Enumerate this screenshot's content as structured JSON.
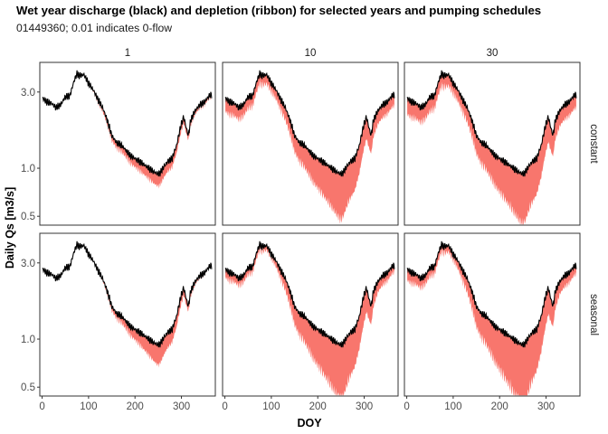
{
  "header": {
    "title": "Wet year discharge (black) and depletion (ribbon) for selected years and pumping schedules",
    "subtitle": "01449360; 0.01 indicates 0-flow"
  },
  "chart_data": {
    "type": "line",
    "title": "Wet year discharge (black) and depletion (ribbon) for selected years and pumping schedules",
    "subtitle": "01449360; 0.01 indicates 0-flow",
    "xlabel": "DOY",
    "ylabel": "Daily Qs [m3/s]",
    "y_scale": "log",
    "xlim": [
      -5,
      373
    ],
    "ylim": [
      0.44,
      4.6
    ],
    "x_ticks": [
      0,
      100,
      200,
      300
    ],
    "x_tick_labels": [
      "0",
      "100",
      "200",
      "300"
    ],
    "y_ticks": [
      0.5,
      1.0,
      3.0
    ],
    "y_tick_labels": [
      "0.5",
      "1.0",
      "3.0"
    ],
    "columns": [
      "1",
      "10",
      "30"
    ],
    "rows": [
      "constant",
      "seasonal"
    ],
    "colors": {
      "discharge_line": "#000000",
      "depletion_ribbon": "#f8766d"
    },
    "discharge": {
      "doy": [
        1,
        10,
        20,
        30,
        40,
        50,
        60,
        70,
        75,
        80,
        90,
        100,
        110,
        120,
        130,
        140,
        150,
        160,
        170,
        180,
        190,
        200,
        210,
        220,
        230,
        240,
        250,
        255,
        260,
        270,
        280,
        290,
        300,
        305,
        310,
        315,
        320,
        330,
        340,
        350,
        360,
        365
      ],
      "q": [
        2.75,
        2.6,
        2.55,
        2.4,
        2.5,
        2.8,
        2.85,
        3.6,
        3.9,
        3.8,
        3.85,
        3.4,
        3.1,
        2.7,
        2.4,
        2.0,
        1.6,
        1.45,
        1.4,
        1.3,
        1.2,
        1.15,
        1.1,
        1.05,
        1.0,
        0.95,
        0.92,
        0.94,
        1.0,
        1.1,
        1.15,
        1.4,
        1.9,
        2.1,
        1.8,
        1.6,
        2.0,
        2.3,
        2.5,
        2.6,
        2.85,
        2.9
      ]
    },
    "depletion_fraction": {
      "doy": [
        1,
        50,
        100,
        120,
        150,
        200,
        250,
        300,
        330,
        365
      ],
      "constant": [
        [
          0,
          0,
          0,
          0.03,
          0.06,
          0.1,
          0.14,
          0.08,
          0.04,
          0.03
        ],
        [
          0.15,
          0.13,
          0.1,
          0.12,
          0.18,
          0.3,
          0.42,
          0.25,
          0.15,
          0.13
        ],
        [
          0.18,
          0.16,
          0.12,
          0.14,
          0.2,
          0.33,
          0.45,
          0.28,
          0.17,
          0.15
        ]
      ],
      "seasonal": [
        [
          0,
          0,
          0,
          0,
          0.05,
          0.12,
          0.22,
          0.1,
          0.03,
          0
        ],
        [
          0.1,
          0.08,
          0.05,
          0.1,
          0.2,
          0.35,
          0.48,
          0.28,
          0.12,
          0.08
        ],
        [
          0.13,
          0.1,
          0.07,
          0.12,
          0.22,
          0.38,
          0.52,
          0.3,
          0.14,
          0.1
        ]
      ]
    }
  }
}
